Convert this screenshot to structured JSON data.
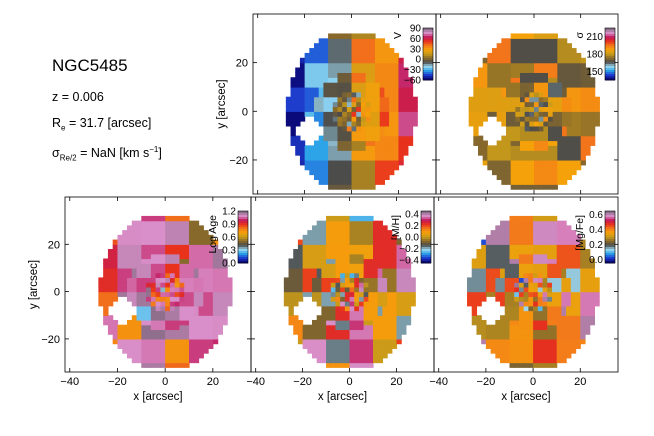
{
  "galaxy": {
    "name": "NGC5485",
    "redshift_text": "z = 0.006",
    "re_symbol": "R",
    "re_sub": "e",
    "re_value_text": " = 31.7 [arcsec]",
    "sigma_symbol": "σ",
    "sigma_sub": "Re/2",
    "sigma_value_text": " = NaN [km s",
    "sigma_exp": "−1",
    "sigma_close": "]"
  },
  "axes": {
    "xlabel": "x [arcsec]",
    "ylabel": "y [arcsec]",
    "xlim": [
      -42,
      36
    ],
    "ylim": [
      -34,
      40
    ],
    "xticks": [
      -40,
      -20,
      0,
      20
    ],
    "yticks": [
      -20,
      0,
      20
    ]
  },
  "chart_data": [
    {
      "type": "heatmap",
      "panel": "velocity",
      "quantity_label": "V",
      "colormap": "diverging",
      "vmin": -60,
      "vmax": 90,
      "colorbar_ticks": [
        90,
        60,
        30,
        0,
        -30,
        -60
      ],
      "colorbar_tick_labels": [
        "90",
        "60",
        "30",
        "0",
        "−30",
        "−60"
      ],
      "show_x_label": false,
      "show_y_label": true
    },
    {
      "type": "heatmap",
      "panel": "dispersion",
      "quantity_label": "σ",
      "colormap": "diverging",
      "vmin": 135,
      "vmax": 225,
      "colorbar_ticks": [
        210,
        180,
        150
      ],
      "colorbar_tick_labels": [
        "210",
        "180",
        "150"
      ],
      "show_x_label": false,
      "show_y_label": false
    },
    {
      "type": "heatmap",
      "panel": "log_age",
      "quantity_label": "Log Age",
      "colormap": "diverging",
      "vmin": 0,
      "vmax": 1.2,
      "colorbar_ticks": [
        1.2,
        0.9,
        0.6,
        0.3,
        0.0
      ],
      "colorbar_tick_labels": [
        "1.2",
        "0.9",
        "0.6",
        "0.3",
        "0.0"
      ],
      "show_x_label": true,
      "show_y_label": true
    },
    {
      "type": "heatmap",
      "panel": "metallicity",
      "quantity_label": "[M/H]",
      "colormap": "diverging",
      "vmin": -0.45,
      "vmax": 0.45,
      "colorbar_ticks": [
        0.4,
        0.2,
        0.0,
        -0.2,
        -0.4
      ],
      "colorbar_tick_labels": [
        "0.4",
        "0.2",
        "0.0",
        "−0.2",
        "−0.4"
      ],
      "show_x_label": true,
      "show_y_label": false
    },
    {
      "type": "heatmap",
      "panel": "alpha_fe",
      "quantity_label": "[Mg/Fe]",
      "colormap": "diverging",
      "vmin": -0.05,
      "vmax": 0.65,
      "colorbar_ticks": [
        0.6,
        0.4,
        0.2,
        0.0
      ],
      "colorbar_tick_labels": [
        "0.6",
        "0.4",
        "0.2",
        "0.0"
      ],
      "show_x_label": true,
      "show_y_label": false
    }
  ],
  "colors": {
    "colormap_stops": [
      "#0a0a7a",
      "#1f3fd1",
      "#2aa3e8",
      "#9fd9f0",
      "#4b4b4b",
      "#8a6a2a",
      "#c89b1a",
      "#f5a10a",
      "#f3791b",
      "#e8321c",
      "#c2185b",
      "#d98fc9",
      "#8a6d88"
    ],
    "hole_fill": "#ffffff",
    "frame": "#000000"
  }
}
